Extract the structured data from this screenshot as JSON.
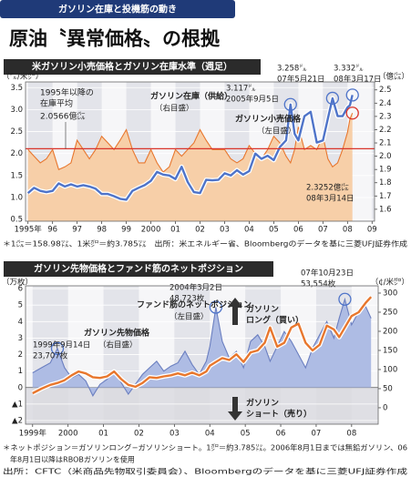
{
  "header": "ガソリン在庫と投機筋の動き",
  "title": "原油〝異常価格〟の根拠",
  "chart_data": [
    {
      "type": "line",
      "title": "米ガソリン小売価格とガソリン在庫水準（週足）",
      "y_unit": "（㌦/米㌎）",
      "y2_unit": "（億㌭）",
      "x": [
        1995.0,
        1995.25,
        1995.5,
        1995.75,
        1996.0,
        1996.25,
        1996.5,
        1996.75,
        1997.0,
        1997.25,
        1997.5,
        1997.75,
        1998.0,
        1998.25,
        1998.5,
        1998.75,
        1999.0,
        1999.25,
        1999.5,
        1999.75,
        2000.0,
        2000.25,
        2000.5,
        2000.75,
        2001.0,
        2001.25,
        2001.5,
        2001.75,
        2002.0,
        2002.25,
        2002.5,
        2002.75,
        2003.0,
        2003.25,
        2003.5,
        2003.75,
        2004.0,
        2004.25,
        2004.5,
        2004.75,
        2005.0,
        2005.25,
        2005.5,
        2005.68,
        2005.85,
        2006.0,
        2006.25,
        2006.5,
        2006.75,
        2007.0,
        2007.2,
        2007.39,
        2007.6,
        2007.8,
        2008.0,
        2008.1,
        2008.2
      ],
      "xlim": [
        1994.9,
        2009.1
      ],
      "xticks": [
        {
          "value": 1995,
          "label": "1995年"
        },
        {
          "value": 1996,
          "label": "96"
        },
        {
          "value": 1997,
          "label": "97"
        },
        {
          "value": 1998,
          "label": "98"
        },
        {
          "value": 1999,
          "label": "99"
        },
        2000,
        {
          "value": 2001,
          "label": "01"
        },
        {
          "value": 2002,
          "label": "02"
        },
        {
          "value": 2003,
          "label": "03"
        },
        {
          "value": 2004,
          "label": "04"
        },
        {
          "value": 2005,
          "label": "05"
        },
        {
          "value": 2006,
          "label": "06"
        },
        {
          "value": 2007,
          "label": "07"
        },
        {
          "value": 2008,
          "label": "08"
        },
        {
          "value": 2009,
          "label": "09"
        }
      ],
      "ylim": [
        0.46,
        3.63
      ],
      "yticks": [
        0.5,
        {
          "value": 1,
          "label": "1.0"
        },
        1.5,
        {
          "value": 2,
          "label": "2.0"
        },
        2.5,
        {
          "value": 3,
          "label": "3.0"
        },
        3.5
      ],
      "y2lim": [
        1.51,
        2.56
      ],
      "y2ticks": [
        1.6,
        1.7,
        1.8,
        1.9,
        {
          "value": 2,
          "label": "2.0"
        },
        2.1,
        2.2,
        2.3,
        2.4,
        2.5
      ],
      "series": [
        {
          "name": "ガソリン在庫（供給）",
          "axis_label": "（右目盛）",
          "axis": "y2",
          "color": "#e8772e",
          "fill": "#f7cfa8",
          "values": [
            2.05,
            2.0,
            1.95,
            1.98,
            2.05,
            1.9,
            1.92,
            1.95,
            2.12,
            2.05,
            1.98,
            2.05,
            2.15,
            2.1,
            2.05,
            2.12,
            2.2,
            2.05,
            1.95,
            1.95,
            2.05,
            1.95,
            1.88,
            1.92,
            2.05,
            2.0,
            2.05,
            2.1,
            2.2,
            2.12,
            2.05,
            2.05,
            2.05,
            1.98,
            1.95,
            1.98,
            2.08,
            2.02,
            1.98,
            2.05,
            2.15,
            2.1,
            2.0,
            1.95,
            2.05,
            2.22,
            2.05,
            2.08,
            2.05,
            2.15,
            1.98,
            1.92,
            1.95,
            2.05,
            2.18,
            2.28,
            2.3252
          ]
        },
        {
          "name": "ガソリン小売価格",
          "axis_label": "（左目盛）",
          "color": "#4f74c9",
          "values": [
            1.1,
            1.22,
            1.15,
            1.12,
            1.15,
            1.32,
            1.25,
            1.3,
            1.25,
            1.28,
            1.25,
            1.2,
            1.08,
            1.08,
            1.03,
            0.97,
            0.95,
            1.15,
            1.22,
            1.28,
            1.38,
            1.58,
            1.52,
            1.5,
            1.42,
            1.7,
            1.35,
            1.12,
            1.1,
            1.4,
            1.39,
            1.4,
            1.55,
            1.5,
            1.62,
            1.52,
            1.6,
            2.0,
            1.88,
            1.95,
            1.85,
            2.15,
            2.3,
            3.117,
            2.45,
            2.3,
            2.85,
            2.95,
            2.25,
            2.3,
            2.8,
            3.258,
            2.85,
            2.85,
            3.05,
            3.1,
            3.332
          ]
        }
      ],
      "reference_line": {
        "value": 2.0566,
        "label": "2.0566億㌭",
        "text_lines": [
          "1995年以降の",
          "在庫平均"
        ],
        "axis": "y2",
        "color": "#d9342b"
      },
      "annotations": [
        {
          "lines": [
            "3.117㌦",
            "2005年9月5日"
          ]
        },
        {
          "lines": [
            "3.258㌦",
            "07年5月21日"
          ]
        },
        {
          "lines": [
            "3.332㌦",
            "08年3月17日"
          ]
        },
        {
          "lines": [
            "2.3252億㌭",
            "08年3月14日"
          ]
        }
      ],
      "notes": [
        "＊1㌭＝158.98㍑、1米㌎＝約3.785㍑　出所：米エネルギー省、Bloombergのデータを基に三菱UFJ証券作成"
      ]
    },
    {
      "type": "area_line",
      "title": "ガソリン先物価格とファンド筋のネットポジション",
      "y_unit": "（万枚）",
      "y2_unit": "（¢/米㌎）",
      "x": [
        1999.0,
        1999.25,
        1999.5,
        1999.7,
        1999.9,
        2000.1,
        2000.3,
        2000.5,
        2000.7,
        2000.9,
        2001.1,
        2001.3,
        2001.5,
        2001.7,
        2001.9,
        2002.1,
        2002.3,
        2002.5,
        2002.7,
        2002.9,
        2003.1,
        2003.3,
        2003.5,
        2003.7,
        2003.9,
        2004.0,
        2004.17,
        2004.35,
        2004.55,
        2004.75,
        2004.95,
        2005.15,
        2005.35,
        2005.55,
        2005.7,
        2005.9,
        2006.1,
        2006.3,
        2006.5,
        2006.7,
        2006.9,
        2007.1,
        2007.3,
        2007.5,
        2007.65,
        2007.81,
        2008.0,
        2008.2,
        2008.4,
        2008.55
      ],
      "xlim": [
        1998.8,
        2008.75
      ],
      "xticks": [
        {
          "value": 1999,
          "label": "1999年"
        },
        2000,
        {
          "value": 2001,
          "label": "01"
        },
        {
          "value": 2002,
          "label": "02"
        },
        {
          "value": 2003,
          "label": "03"
        },
        {
          "value": 2004,
          "label": "04"
        },
        {
          "value": 2005,
          "label": "05"
        },
        {
          "value": 2006,
          "label": "06"
        },
        {
          "value": 2007,
          "label": "07"
        },
        {
          "value": 2008,
          "label": "08"
        }
      ],
      "ylim": [
        -2.22,
        6.17
      ],
      "yticks": [
        {
          "value": -2,
          "label": "▲2"
        },
        {
          "value": -1,
          "label": "▲1"
        },
        0,
        1,
        2,
        3,
        4,
        5,
        6
      ],
      "y2lim": [
        -43,
        319
      ],
      "y2ticks": [
        0,
        50,
        100,
        150,
        200,
        250,
        300
      ],
      "series": [
        {
          "name": "ファンド筋のネットポジション",
          "axis_label": "（左目盛）",
          "color": "#6b7fc0",
          "fill": "#aebce4",
          "values": [
            0.9,
            1.2,
            1.5,
            2.3707,
            1.2,
            0.6,
            0.8,
            0.4,
            -0.5,
            0.2,
            0.5,
            1.0,
            0.3,
            -0.4,
            0.2,
            0.8,
            1.2,
            1.6,
            1.0,
            1.3,
            1.5,
            2.2,
            1.4,
            0.8,
            1.6,
            2.5,
            4.8723,
            2.8,
            1.8,
            2.2,
            1.2,
            2.8,
            3.2,
            2.5,
            1.6,
            2.5,
            3.4,
            2.8,
            2.0,
            1.2,
            2.4,
            3.2,
            4.0,
            3.0,
            4.2,
            5.3554,
            3.8,
            4.6,
            4.9,
            4.2
          ]
        },
        {
          "name": "ガソリン先物価格",
          "axis_label": "（右目盛）",
          "axis": "y2",
          "color": "#e8772e",
          "values": [
            38,
            50,
            60,
            65,
            72,
            85,
            95,
            90,
            80,
            78,
            82,
            95,
            75,
            60,
            55,
            65,
            80,
            78,
            82,
            85,
            90,
            85,
            92,
            85,
            95,
            110,
            120,
            130,
            125,
            140,
            120,
            145,
            150,
            170,
            210,
            160,
            170,
            210,
            220,
            170,
            150,
            165,
            215,
            205,
            185,
            210,
            240,
            250,
            275,
            290
          ]
        }
      ],
      "long_label": [
        "ガソリン",
        "ロング（買い）"
      ],
      "short_label": [
        "ガソリン",
        "ショート（売り）"
      ],
      "annotations": [
        {
          "lines": [
            "1999年9月14日",
            "23,707枚"
          ]
        },
        {
          "lines": [
            "2004年3月2日",
            "48,723枚"
          ]
        },
        {
          "lines": [
            "07年10月23日",
            "53,554枚"
          ]
        }
      ],
      "notes": [
        "＊ネットポジション＝ガソリンロング−ガソリンショート。1㌎＝約3.785㍑。2006年8月1日までは無鉛ガソリン、06",
        "　年8月1日以降はRBOBガソリンを使用",
        "出所：CFTC（米商品先物取引委員会）、Bloombergのデータを基に三菱UFJ証券作成"
      ]
    }
  ]
}
